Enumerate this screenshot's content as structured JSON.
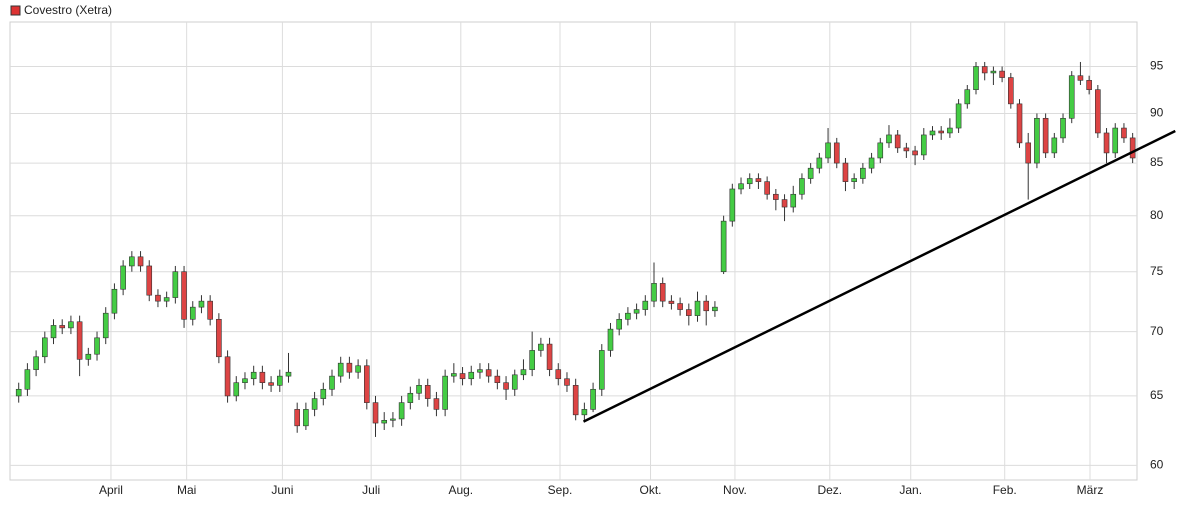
{
  "chart_data": {
    "type": "candlestick",
    "legend": "Covestro (Xetra)",
    "legend_color": "#dd3333",
    "up_color": "#44cc44",
    "down_color": "#dd4444",
    "log_scale": true,
    "grid": true,
    "ylim": [
      59,
      100
    ],
    "yticks": [
      60,
      65,
      70,
      75,
      80,
      85,
      90,
      95
    ],
    "xlim": [
      -1,
      128.5
    ],
    "xticks": [
      {
        "value": 10.6,
        "label": "April"
      },
      {
        "value": 19.3,
        "label": "Mai"
      },
      {
        "value": 30.3,
        "label": "Juni"
      },
      {
        "value": 40.5,
        "label": "Juli"
      },
      {
        "value": 50.8,
        "label": "Aug."
      },
      {
        "value": 62.2,
        "label": "Sep."
      },
      {
        "value": 72.6,
        "label": "Okt."
      },
      {
        "value": 82.3,
        "label": "Nov."
      },
      {
        "value": 93.2,
        "label": "Dez."
      },
      {
        "value": 102.5,
        "label": "Jan."
      },
      {
        "value": 113.3,
        "label": "Feb."
      },
      {
        "value": 123.1,
        "label": "März"
      }
    ],
    "x": [
      0,
      1,
      2,
      3,
      4,
      5,
      6,
      7,
      8,
      9,
      10,
      11,
      12,
      13,
      14,
      15,
      16,
      17,
      18,
      19,
      20,
      21,
      22,
      23,
      24,
      25,
      26,
      27,
      28,
      29,
      30,
      31,
      32,
      33,
      34,
      35,
      36,
      37,
      38,
      39,
      40,
      41,
      42,
      43,
      44,
      45,
      46,
      47,
      48,
      49,
      50,
      51,
      52,
      53,
      54,
      55,
      56,
      57,
      58,
      59,
      60,
      61,
      62,
      63,
      64,
      65,
      66,
      67,
      68,
      69,
      70,
      71,
      72,
      73,
      74,
      75,
      76,
      77,
      78,
      79,
      80,
      81,
      82,
      83,
      84,
      85,
      86,
      87,
      88,
      89,
      90,
      91,
      92,
      93,
      94,
      95,
      96,
      97,
      98,
      99,
      100,
      101,
      102,
      103,
      104,
      105,
      106,
      107,
      108,
      109,
      110,
      111,
      112,
      113,
      114,
      115,
      116,
      117,
      118,
      119,
      120,
      121,
      122,
      123,
      124,
      125,
      126,
      127,
      128
    ],
    "open": [
      65,
      65.5,
      67,
      68,
      69.5,
      70.5,
      70.3,
      70.8,
      67.8,
      68.2,
      69.5,
      71.5,
      73.5,
      75.5,
      76.3,
      75.5,
      73,
      72.5,
      72.8,
      75,
      71,
      72,
      72.5,
      71,
      68,
      65,
      66,
      66.3,
      66.8,
      66,
      65.8,
      66.5,
      64,
      62.8,
      64,
      64.8,
      65.5,
      66.5,
      67.5,
      66.8,
      67.3,
      64.5,
      63,
      63.2,
      63.3,
      64.5,
      65.2,
      65.8,
      64.8,
      64,
      66.5,
      66.7,
      66.3,
      66.8,
      67,
      66.5,
      66,
      65.5,
      66.6,
      67,
      68.5,
      69,
      67,
      66.3,
      65.8,
      63.6,
      64,
      65.5,
      68.5,
      70.2,
      71,
      71.5,
      71.8,
      72.5,
      74,
      72.5,
      72.3,
      71.8,
      71.3,
      72.5,
      71.7,
      75,
      79.5,
      82.5,
      83,
      83.5,
      83.2,
      82,
      81.5,
      80.8,
      82,
      83.5,
      84.5,
      85.5,
      87,
      85,
      83.2,
      83.5,
      84.5,
      85.5,
      87,
      87.8,
      86.5,
      86.2,
      85.8,
      87.8,
      88.2,
      88,
      88.5,
      91,
      92.5,
      95,
      94.3,
      94.5,
      93.8,
      91,
      87,
      85,
      89.5,
      86,
      87.5,
      89.5,
      94,
      93.5,
      92.5,
      88,
      86,
      88.5,
      87.5
    ],
    "high": [
      66,
      67.5,
      68.5,
      70,
      71,
      71,
      71.3,
      71.3,
      68.7,
      70,
      72,
      74,
      76,
      76.8,
      76.8,
      76,
      73.5,
      73.3,
      75.5,
      75.5,
      72.5,
      73,
      73,
      71.5,
      68.5,
      66.5,
      66.8,
      67.3,
      67.3,
      66.5,
      67,
      68.3,
      64.5,
      64.5,
      65.3,
      66,
      67,
      68,
      68,
      67.8,
      67.8,
      65,
      63.8,
      63.8,
      65,
      65.7,
      66.3,
      66.3,
      65.3,
      67,
      67.5,
      67.2,
      67.3,
      67.5,
      67.5,
      67,
      66.5,
      67,
      67.8,
      70,
      69.5,
      69.5,
      67.5,
      66.8,
      66.3,
      64.5,
      66,
      69,
      70.7,
      71.5,
      72,
      72.3,
      73,
      75.8,
      74.5,
      73,
      72.8,
      72.3,
      73.3,
      73,
      72.5,
      80,
      83,
      83.6,
      84,
      84,
      83.7,
      82.5,
      82,
      82.8,
      84,
      85,
      86,
      88.5,
      87.5,
      85.5,
      84,
      85,
      86,
      87.5,
      88.8,
      88.3,
      87,
      86.7,
      88.5,
      88.7,
      88.7,
      89.5,
      91.5,
      93,
      95.5,
      95.5,
      95,
      95,
      94.3,
      91.5,
      88,
      90,
      90,
      88,
      90,
      94.5,
      95.5,
      94,
      93,
      88.5,
      89,
      89,
      88
    ],
    "low": [
      64.5,
      65,
      66.5,
      67.5,
      69,
      69.8,
      69.8,
      66.5,
      67.3,
      67.7,
      69,
      71,
      73,
      75,
      75,
      72.5,
      72,
      72,
      72.3,
      70.3,
      70.5,
      71.5,
      70.5,
      67.5,
      64.5,
      64.6,
      65.5,
      65.8,
      65.5,
      65.3,
      65.3,
      66,
      62.3,
      62.5,
      63.5,
      64.3,
      65,
      66,
      66.3,
      66.3,
      64,
      62,
      62.5,
      62.7,
      62.8,
      64,
      64.7,
      64.2,
      63.5,
      63.5,
      66,
      65.8,
      65.8,
      66.3,
      66,
      65.5,
      64.7,
      65,
      66.2,
      66.5,
      68,
      66.5,
      65.8,
      65.3,
      63.2,
      63.1,
      63.8,
      65,
      68,
      69.7,
      70.5,
      71,
      71.3,
      72,
      72,
      71.8,
      71.3,
      70.5,
      70.8,
      70.5,
      71.2,
      74.8,
      79,
      82,
      82.5,
      82.5,
      81.5,
      80.5,
      79.5,
      80.3,
      81.5,
      83,
      84,
      85,
      84.5,
      82.3,
      82.5,
      83,
      84,
      85,
      86.5,
      86,
      85.5,
      84.8,
      85.3,
      87.3,
      87.3,
      87.5,
      88,
      90.5,
      92,
      93.5,
      93,
      93.3,
      90.5,
      86.5,
      81.5,
      84.5,
      85.5,
      85.5,
      87,
      89,
      93,
      92,
      87.5,
      85,
      85.5,
      87,
      85
    ],
    "close": [
      65.5,
      67,
      68,
      69.5,
      70.5,
      70.3,
      70.8,
      67.8,
      68.2,
      69.5,
      71.5,
      73.5,
      75.5,
      76.3,
      75.5,
      73,
      72.5,
      72.8,
      75,
      71,
      72,
      72.5,
      71,
      68,
      65,
      66,
      66.3,
      66.8,
      66,
      65.8,
      66.5,
      66.8,
      62.8,
      64,
      64.8,
      65.5,
      66.5,
      67.5,
      66.8,
      67.3,
      64.5,
      63,
      63.2,
      63.3,
      64.5,
      65.2,
      65.8,
      64.8,
      64,
      66.5,
      66.7,
      66.3,
      66.8,
      67,
      66.5,
      66,
      65.5,
      66.6,
      67,
      68.5,
      69,
      67,
      66.3,
      65.8,
      63.6,
      64,
      65.5,
      68.5,
      70.2,
      71,
      71.5,
      71.8,
      72.5,
      74,
      72.5,
      72.3,
      71.8,
      71.3,
      72.5,
      71.7,
      72,
      79.5,
      82.5,
      83,
      83.5,
      83.2,
      82,
      81.5,
      80.8,
      82,
      83.5,
      84.5,
      85.5,
      87,
      85,
      83.2,
      83.5,
      84.5,
      85.5,
      87,
      87.8,
      86.5,
      86.2,
      85.8,
      87.8,
      88.2,
      88,
      88.5,
      91,
      92.5,
      95,
      94.3,
      94.5,
      93.8,
      91,
      87,
      85,
      89.5,
      86,
      87.5,
      89.5,
      94,
      93.5,
      92.5,
      88,
      86,
      88.5,
      87.5,
      85.5
    ],
    "trendline": {
      "x": [
        64.9,
        132.9
      ],
      "y": [
        63.1,
        88.2
      ]
    }
  }
}
